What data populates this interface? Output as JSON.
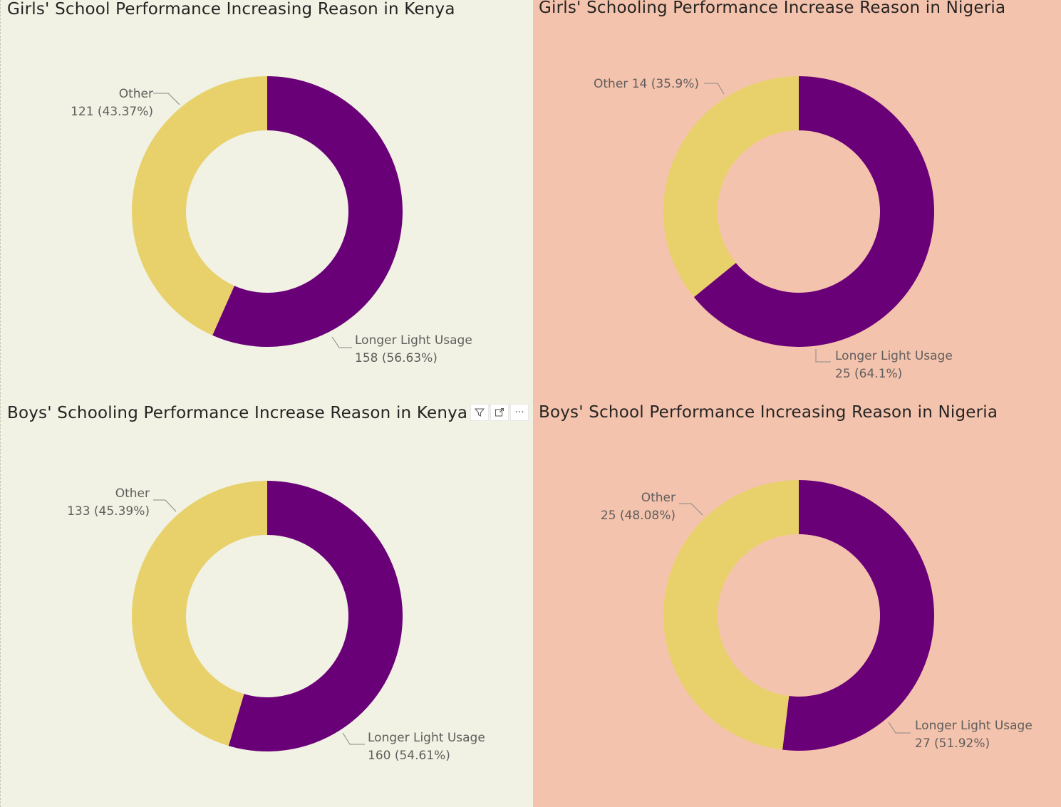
{
  "colors": {
    "kenya_background": "#f1f1e4",
    "nigeria_background": "#f4c3ad",
    "longer_light_usage": "#6a0078",
    "other": "#e8d16a",
    "label_text": "#605e5c",
    "title_text": "#252423"
  },
  "visual_header": {
    "icons": [
      "filter-icon",
      "focus-mode-icon",
      "more-options-icon"
    ],
    "more_label": "···"
  },
  "chart_data": [
    {
      "type": "pie",
      "variant": "donut",
      "title": "Girls' School Performance Increasing Reason in Kenya",
      "categories": [
        "Longer Light Usage",
        "Other"
      ],
      "values": [
        158,
        121
      ],
      "percents": [
        "56.63%",
        "43.37%"
      ],
      "labels": {
        "other": [
          "Other",
          "121 (43.37%)"
        ],
        "longer": [
          "Longer Light Usage",
          "158 (56.63%)"
        ]
      }
    },
    {
      "type": "pie",
      "variant": "donut",
      "title": "Girls' Schooling Performance Increase Reason in Nigeria",
      "categories": [
        "Longer Light Usage",
        "Other"
      ],
      "values": [
        25,
        14
      ],
      "percents": [
        "64.1%",
        "35.9%"
      ],
      "labels": {
        "other": [
          "Other 14 (35.9%)"
        ],
        "longer": [
          "Longer Light Usage",
          "25 (64.1%)"
        ]
      }
    },
    {
      "type": "pie",
      "variant": "donut",
      "title": "Boys' Schooling Performance Increase Reason in Kenya",
      "categories": [
        "Longer Light Usage",
        "Other"
      ],
      "values": [
        160,
        133
      ],
      "percents": [
        "54.61%",
        "45.39%"
      ],
      "labels": {
        "other": [
          "Other",
          "133 (45.39%)"
        ],
        "longer": [
          "Longer Light Usage",
          "160 (54.61%)"
        ]
      }
    },
    {
      "type": "pie",
      "variant": "donut",
      "title": "Boys' School Performance Increasing Reason in Nigeria",
      "categories": [
        "Longer Light Usage",
        "Other"
      ],
      "values": [
        27,
        25
      ],
      "percents": [
        "51.92%",
        "48.08%"
      ],
      "labels": {
        "other": [
          "Other",
          "25 (48.08%)"
        ],
        "longer": [
          "Longer Light Usage",
          "27 (51.92%)"
        ]
      }
    }
  ]
}
